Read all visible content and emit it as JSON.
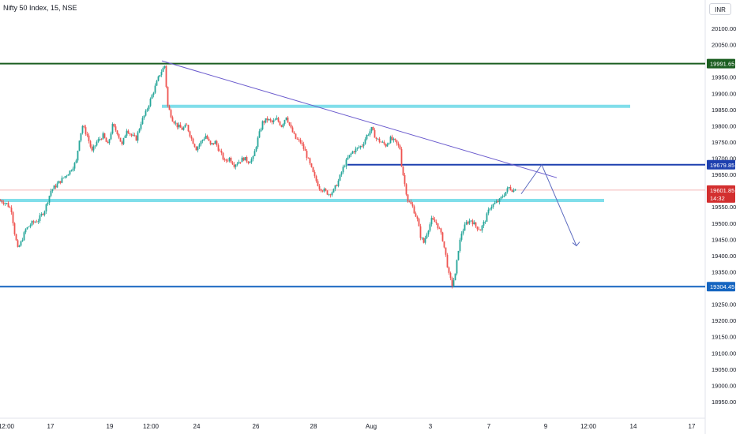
{
  "chart_data": {
    "type": "candlestick",
    "title": "Nifty 50 Index, 15, NSE",
    "currency": "INR",
    "y_axis_ticks": [
      20100,
      20050,
      19950,
      19900,
      19850,
      19800,
      19750,
      19700,
      19650,
      19550,
      19500,
      19450,
      19400,
      19350,
      19250,
      19200,
      19150,
      19100,
      19050,
      19000,
      18950
    ],
    "ylim": [
      18930,
      20150
    ],
    "x_axis_ticks": [
      "12:00",
      "17",
      "19",
      "12:00",
      "24",
      "26",
      "28",
      "Aug",
      "3",
      "7",
      "9",
      "12:00",
      "14",
      "17"
    ],
    "price_labels": [
      {
        "name": "level-high",
        "value": "19991.65",
        "color": "#1b5e20"
      },
      {
        "name": "level-mid",
        "value": "19679.85",
        "color": "#1e40af"
      },
      {
        "name": "current-price",
        "value": "19601.85",
        "sub": "14:32",
        "color": "#d32f2f"
      },
      {
        "name": "level-low",
        "value": "19304.45",
        "color": "#1565c0"
      }
    ],
    "horizontal_levels": [
      {
        "name": "resistance-top",
        "price": 19991.65,
        "color": "#1b5e20"
      },
      {
        "name": "zone-upper",
        "price": 19860,
        "color": "#80deea"
      },
      {
        "name": "level-mid",
        "price": 19679.85,
        "color": "#1e40af"
      },
      {
        "name": "zone-lower",
        "price": 19570,
        "color": "#80deea"
      },
      {
        "name": "support-bottom",
        "price": 19304.45,
        "color": "#1565c0"
      }
    ],
    "close_path": [
      [
        0,
        19570
      ],
      [
        8,
        19560
      ],
      [
        14,
        19540
      ],
      [
        18,
        19470
      ],
      [
        22,
        19420
      ],
      [
        26,
        19440
      ],
      [
        32,
        19480
      ],
      [
        40,
        19500
      ],
      [
        48,
        19510
      ],
      [
        56,
        19540
      ],
      [
        64,
        19600
      ],
      [
        72,
        19620
      ],
      [
        80,
        19640
      ],
      [
        88,
        19660
      ],
      [
        96,
        19690
      ],
      [
        100,
        19760
      ],
      [
        104,
        19800
      ],
      [
        110,
        19770
      ],
      [
        116,
        19720
      ],
      [
        122,
        19750
      ],
      [
        130,
        19770
      ],
      [
        136,
        19740
      ],
      [
        142,
        19800
      ],
      [
        148,
        19780
      ],
      [
        154,
        19740
      ],
      [
        160,
        19790
      ],
      [
        166,
        19770
      ],
      [
        172,
        19760
      ],
      [
        178,
        19810
      ],
      [
        184,
        19840
      ],
      [
        190,
        19880
      ],
      [
        196,
        19920
      ],
      [
        202,
        19960
      ],
      [
        208,
        19985
      ],
      [
        212,
        19860
      ],
      [
        218,
        19820
      ],
      [
        224,
        19800
      ],
      [
        230,
        19790
      ],
      [
        236,
        19800
      ],
      [
        242,
        19760
      ],
      [
        248,
        19730
      ],
      [
        254,
        19750
      ],
      [
        260,
        19770
      ],
      [
        266,
        19740
      ],
      [
        272,
        19750
      ],
      [
        278,
        19720
      ],
      [
        284,
        19690
      ],
      [
        290,
        19700
      ],
      [
        296,
        19680
      ],
      [
        302,
        19690
      ],
      [
        308,
        19700
      ],
      [
        314,
        19690
      ],
      [
        320,
        19700
      ],
      [
        326,
        19760
      ],
      [
        332,
        19810
      ],
      [
        338,
        19820
      ],
      [
        344,
        19810
      ],
      [
        350,
        19820
      ],
      [
        356,
        19800
      ],
      [
        362,
        19830
      ],
      [
        368,
        19790
      ],
      [
        374,
        19760
      ],
      [
        380,
        19750
      ],
      [
        386,
        19720
      ],
      [
        392,
        19680
      ],
      [
        398,
        19640
      ],
      [
        404,
        19610
      ],
      [
        410,
        19600
      ],
      [
        416,
        19590
      ],
      [
        422,
        19600
      ],
      [
        428,
        19630
      ],
      [
        434,
        19670
      ],
      [
        440,
        19700
      ],
      [
        446,
        19720
      ],
      [
        452,
        19730
      ],
      [
        458,
        19740
      ],
      [
        464,
        19770
      ],
      [
        470,
        19790
      ],
      [
        476,
        19760
      ],
      [
        482,
        19750
      ],
      [
        488,
        19740
      ],
      [
        494,
        19760
      ],
      [
        500,
        19750
      ],
      [
        506,
        19730
      ],
      [
        508,
        19680
      ],
      [
        512,
        19620
      ],
      [
        516,
        19570
      ],
      [
        522,
        19550
      ],
      [
        528,
        19510
      ],
      [
        532,
        19460
      ],
      [
        536,
        19440
      ],
      [
        540,
        19470
      ],
      [
        546,
        19510
      ],
      [
        552,
        19500
      ],
      [
        556,
        19480
      ],
      [
        560,
        19450
      ],
      [
        564,
        19400
      ],
      [
        568,
        19340
      ],
      [
        572,
        19310
      ],
      [
        576,
        19340
      ],
      [
        580,
        19420
      ],
      [
        584,
        19470
      ],
      [
        590,
        19500
      ],
      [
        596,
        19510
      ],
      [
        602,
        19490
      ],
      [
        608,
        19480
      ],
      [
        614,
        19510
      ],
      [
        620,
        19550
      ],
      [
        626,
        19560
      ],
      [
        632,
        19570
      ],
      [
        638,
        19590
      ],
      [
        644,
        19610
      ],
      [
        650,
        19600
      ],
      [
        654,
        19620
      ]
    ],
    "projection": [
      [
        660,
        19590
      ],
      [
        686,
        19680
      ],
      [
        730,
        19430
      ]
    ],
    "trendline": {
      "from": [
        205,
        20000
      ],
      "to": [
        705,
        19640
      ]
    }
  }
}
